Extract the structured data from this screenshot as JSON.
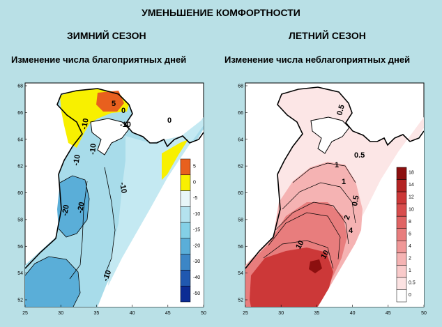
{
  "title": "УМЕНЬШЕНИЕ КОМФОРТНОСТИ",
  "left": {
    "season": "ЗИМНИЙ СЕЗОН",
    "subtitle": "Изменение числа благоприятных дней",
    "legend": {
      "labels": [
        "5",
        "0",
        "-5",
        "-10",
        "-15",
        "-20",
        "-30",
        "-40",
        "-50"
      ],
      "colors": [
        "#e8601e",
        "#f8f000",
        "#e8f6f8",
        "#b4e2ee",
        "#84d0e6",
        "#5aaed8",
        "#3c86c6",
        "#2058b0",
        "#0c2c94"
      ]
    },
    "contour_labels": [
      "5",
      "0",
      "0",
      "-10",
      "-10",
      "-10",
      "-10",
      "-10",
      "-20",
      "-20",
      "-10"
    ]
  },
  "right": {
    "season": "ЛЕТНИЙ СЕЗОН",
    "subtitle": "Изменение числа неблагоприятных дней",
    "legend": {
      "labels": [
        "18",
        "14",
        "12",
        "10",
        "8",
        "6",
        "4",
        "2",
        "1",
        "0.5",
        "0"
      ],
      "colors": [
        "#8c0f0f",
        "#b32424",
        "#cc3838",
        "#d84d4d",
        "#e06464",
        "#e87d7d",
        "#f09898",
        "#f5b3b3",
        "#f9caca",
        "#fce2e2",
        "#ffffff"
      ]
    },
    "contour_labels": [
      "0.5",
      "0.5",
      "1",
      "1",
      "0.5",
      "2",
      "4",
      "10",
      "10"
    ]
  },
  "axes": {
    "x_ticks": [
      "25",
      "30",
      "35",
      "40",
      "45",
      "50"
    ],
    "y_ticks": [
      "52",
      "54",
      "56",
      "58",
      "60",
      "62",
      "64",
      "66",
      "68"
    ]
  }
}
